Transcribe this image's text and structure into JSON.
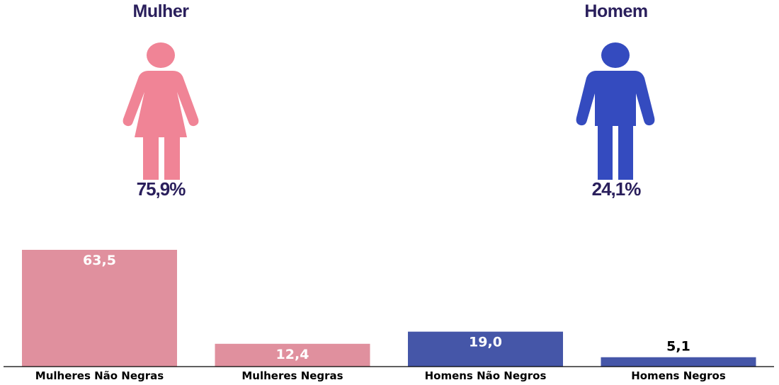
{
  "panels": {
    "woman": {
      "title": "Mulher",
      "percent": "75,9%",
      "icon": "woman-icon",
      "color": "#f08496"
    },
    "man": {
      "title": "Homem",
      "percent": "24,1%",
      "icon": "man-icon",
      "color": "#344bbf"
    }
  },
  "chart_data": {
    "type": "bar",
    "categories": [
      "Mulheres Não Negras",
      "Mulheres Negras",
      "Homens Não Negros",
      "Homens Negros"
    ],
    "values": [
      63.5,
      12.4,
      19.0,
      5.1
    ],
    "value_labels": [
      "63,5",
      "12,4",
      "19,0",
      "5,1"
    ],
    "bar_colors": [
      "#e0909e",
      "#e0909e",
      "#4556a8",
      "#4556a8"
    ],
    "title": "",
    "xlabel": "",
    "ylabel": "",
    "ylim": [
      0,
      63.5
    ],
    "grid": false
  }
}
